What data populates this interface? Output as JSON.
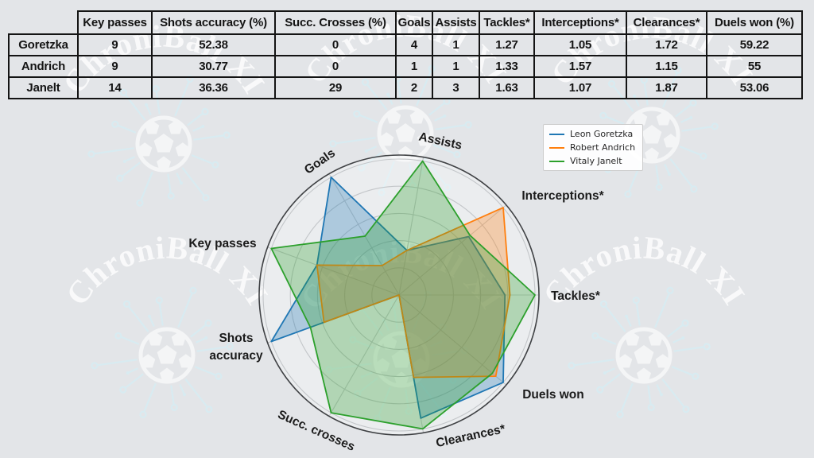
{
  "watermark": {
    "text": "ChroniBall XI"
  },
  "table": {
    "corner_label": "",
    "columns": [
      "Key passes",
      "Shots accuracy (%)",
      "Succ. Crosses (%)",
      "Goals",
      "Assists",
      "Tackles*",
      "Interceptions*",
      "Clearances*",
      "Duels won (%)"
    ],
    "rows": [
      {
        "name": "Goretzka",
        "values": [
          "9",
          "52.38",
          "0",
          "4",
          "1",
          "1.27",
          "1.05",
          "1.72",
          "59.22"
        ]
      },
      {
        "name": "Andrich",
        "values": [
          "9",
          "30.77",
          "0",
          "1",
          "1",
          "1.33",
          "1.57",
          "1.15",
          "55"
        ]
      },
      {
        "name": "Janelt",
        "values": [
          "14",
          "36.36",
          "29",
          "2",
          "3",
          "1.63",
          "1.07",
          "1.87",
          "53.06"
        ]
      }
    ]
  },
  "chart_data": {
    "type": "radar",
    "axes": [
      "Assists",
      "Interceptions*",
      "Tackles*",
      "Duels won",
      "Clearances*",
      "Succ. crosses",
      "Shots accuracy",
      "Key passes",
      "Goals"
    ],
    "normalization": "each axis scaled to the per-axis maximum across the three players",
    "series": [
      {
        "name": "Leon Goretzka",
        "color": "#1f77b4",
        "values": [
          1,
          1.05,
          1.27,
          59.22,
          1.72,
          0,
          52.38,
          9,
          4
        ]
      },
      {
        "name": "Robert Andrich",
        "color": "#ff7f0e",
        "values": [
          1,
          1.57,
          1.33,
          55,
          1.15,
          0,
          30.77,
          9,
          1
        ]
      },
      {
        "name": "Vitaly Janelt",
        "color": "#2ca02c",
        "values": [
          3,
          1.07,
          1.63,
          53.06,
          1.87,
          29,
          36.36,
          14,
          2
        ]
      }
    ],
    "legend_position": "top-right",
    "grid": true
  }
}
